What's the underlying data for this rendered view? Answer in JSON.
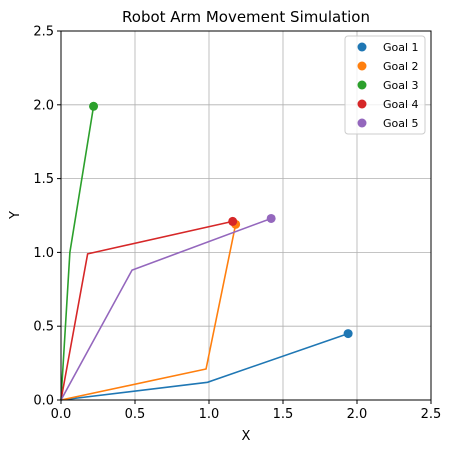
{
  "chart_data": {
    "type": "line",
    "title": "Robot Arm Movement Simulation",
    "xlabel": "X",
    "ylabel": "Y",
    "xlim": [
      0,
      2.5
    ],
    "ylim": [
      0,
      2.5
    ],
    "grid": true,
    "legend_position": "top-right",
    "xticks": [
      "0.0",
      "0.5",
      "1.0",
      "1.5",
      "2.0",
      "2.5"
    ],
    "yticks": [
      "0.0",
      "0.5",
      "1.0",
      "1.5",
      "2.0",
      "2.5"
    ],
    "series": [
      {
        "name": "Goal 1",
        "color": "#1f77b4",
        "arm": [
          [
            0,
            0
          ],
          [
            0.99,
            0.12
          ],
          [
            1.94,
            0.45
          ]
        ],
        "goal": [
          1.94,
          0.45
        ]
      },
      {
        "name": "Goal 2",
        "color": "#ff7f0e",
        "arm": [
          [
            0,
            0
          ],
          [
            0.98,
            0.21
          ],
          [
            1.18,
            1.19
          ]
        ],
        "goal": [
          1.18,
          1.19
        ]
      },
      {
        "name": "Goal 3",
        "color": "#2ca02c",
        "arm": [
          [
            0,
            0
          ],
          [
            0.06,
            1.0
          ],
          [
            0.22,
            1.99
          ]
        ],
        "goal": [
          0.22,
          1.99
        ]
      },
      {
        "name": "Goal 4",
        "color": "#d62728",
        "arm": [
          [
            0,
            0
          ],
          [
            0.18,
            0.99
          ],
          [
            1.16,
            1.21
          ]
        ],
        "goal": [
          1.16,
          1.21
        ]
      },
      {
        "name": "Goal 5",
        "color": "#9467bd",
        "arm": [
          [
            0,
            0
          ],
          [
            0.48,
            0.88
          ],
          [
            1.42,
            1.23
          ]
        ],
        "goal": [
          1.42,
          1.23
        ]
      }
    ]
  }
}
